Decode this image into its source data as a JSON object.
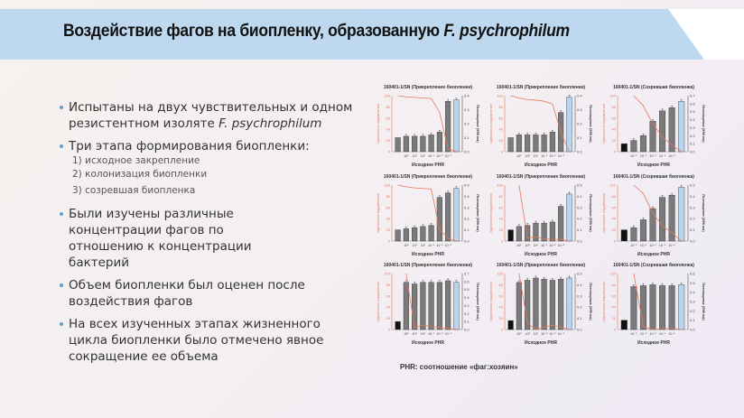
{
  "header": {
    "title_main": "Воздействие фагов на биопленку, образованную ",
    "title_italic": "F. psychrophilum"
  },
  "bullets": [
    {
      "text": "Испытаны на двух чувствительных и одном резистентном изоляте ",
      "italic": "F. psychrophilum"
    },
    {
      "text": "Три этапа формирования биопленки:",
      "sub": [
        "1) исходное закрепление",
        "2) колонизация биопленки",
        "3) созревшая биопленка"
      ]
    },
    {
      "text": "Были изучены различные концентрации фагов по отношению к концентрации бактерий"
    },
    {
      "text": "Объем биопленки был оценен после воздействия фагов"
    },
    {
      "text": "На всех изученных этапах жизненного цикла биопленки было отмечено явное сокращение ее объема"
    }
  ],
  "footnote": "PHR: соотношение «фаг:хозяин»",
  "colors": {
    "title_band": "#bed9ef",
    "bullet_dot": "#5aa0d8",
    "bar_gray": "#7a7a7a",
    "bar_black": "#111111",
    "bar_blue": "#b7d5ee",
    "line_orange": "#e8775a"
  },
  "chart_common": {
    "xlabel": "Исходное PHR",
    "ylabel_left": "Идеальное подавление",
    "ylabel_right": "Поглощение (595 нм)",
    "left_ticks": [
      0,
      20,
      40,
      60,
      80,
      100
    ]
  },
  "chart_data": [
    {
      "type": "bar",
      "title": "160401-1/SN (Прикрепление биопленки)",
      "categories": [
        "",
        "10²",
        "10¹",
        "10⁰",
        "10⁻¹",
        "10⁻²",
        "10⁻³",
        "ctrl"
      ],
      "has_black": false,
      "values": [
        0.1,
        0.11,
        0.11,
        0.11,
        0.12,
        0.14,
        0.36,
        0.37
      ],
      "ymax_right": 0.4,
      "right_ticks": [
        0.0,
        0.1,
        0.2,
        0.3,
        0.4
      ],
      "inhibition": [
        100,
        98,
        97,
        96,
        95,
        70,
        5,
        0
      ]
    },
    {
      "type": "bar",
      "title": "160401-1/SN (Прикрепление биопленки)",
      "categories": [
        "",
        "10²",
        "10¹",
        "10⁰",
        "10⁻¹",
        "10⁻²",
        "10⁻³",
        "ctrl"
      ],
      "has_black": false,
      "values": [
        0.1,
        0.12,
        0.12,
        0.12,
        0.12,
        0.14,
        0.28,
        0.39
      ],
      "ymax_right": 0.4,
      "right_ticks": [
        0.0,
        0.1,
        0.2,
        0.3,
        0.4
      ],
      "inhibition": [
        100,
        96,
        93,
        92,
        90,
        85,
        35,
        0
      ]
    },
    {
      "type": "bar",
      "title": "160401-1/SN (Созревшая биопленка)",
      "categories": [
        "",
        "10⁻¹",
        "10⁻²",
        "10⁻³",
        "10⁻⁴",
        "10⁻⁵",
        "ctrl"
      ],
      "has_black": true,
      "values": [
        0.1,
        0.14,
        0.2,
        0.38,
        0.51,
        0.55,
        0.63
      ],
      "ymax_right": 0.7,
      "right_ticks": [
        0.0,
        0.1,
        0.2,
        0.3,
        0.4,
        0.5,
        0.6,
        0.7
      ],
      "inhibition": [
        null,
        100,
        82,
        50,
        26,
        12,
        0
      ]
    },
    {
      "type": "bar",
      "title": "160401-1/SN (Прикрепление биопленки)",
      "categories": [
        "",
        "10²",
        "10¹",
        "10⁰",
        "10⁻¹",
        "10⁻²",
        "10⁻³",
        "ctrl"
      ],
      "has_black": false,
      "values": [
        0.1,
        0.11,
        0.12,
        0.13,
        0.14,
        0.39,
        0.43,
        0.47
      ],
      "ymax_right": 0.5,
      "right_ticks": [
        0.0,
        0.1,
        0.2,
        0.3,
        0.4,
        0.5
      ],
      "inhibition": [
        100,
        97,
        95,
        94,
        93,
        20,
        5,
        0
      ]
    },
    {
      "type": "bar",
      "title": "160401-1/SN (Прикрепление биопленки)",
      "categories": [
        "",
        "10²",
        "10¹",
        "10⁰",
        "10⁻¹",
        "10⁻²",
        "10⁻³",
        "ctrl"
      ],
      "has_black": true,
      "values": [
        0.1,
        0.13,
        0.14,
        0.16,
        0.16,
        0.17,
        0.31,
        0.42
      ],
      "ymax_right": 0.5,
      "right_ticks": [
        0.0,
        0.1,
        0.2,
        0.3,
        0.4,
        0.5
      ],
      "inhibition": [
        null,
        100,
        5,
        8,
        4,
        3,
        3,
        0
      ]
    },
    {
      "type": "bar",
      "title": "160401-1/SN (Созревшая биопленка)",
      "categories": [
        "",
        "10⁻¹",
        "10⁻²",
        "10⁻³",
        "10⁻⁴",
        "10⁻⁵",
        "ctrl"
      ],
      "has_black": true,
      "values": [
        0.1,
        0.12,
        0.19,
        0.29,
        0.39,
        0.41,
        0.48
      ],
      "ymax_right": 0.5,
      "right_ticks": [
        0.0,
        0.1,
        0.2,
        0.3,
        0.4,
        0.5
      ],
      "inhibition": [
        null,
        100,
        85,
        50,
        27,
        15,
        0
      ]
    },
    {
      "type": "bar",
      "title": "160401-1/SN (Прикрепление биопленки)",
      "categories": [
        "",
        "10²",
        "10¹",
        "10⁰",
        "10⁻¹",
        "10⁻²",
        "10⁻³",
        "ctrl"
      ],
      "has_black": true,
      "values": [
        0.1,
        0.59,
        0.57,
        0.59,
        0.59,
        0.59,
        0.61,
        0.59
      ],
      "ymax_right": 0.7,
      "right_ticks": [
        0.0,
        0.1,
        0.2,
        0.3,
        0.4,
        0.5,
        0.6,
        0.7
      ],
      "inhibition": [
        null,
        100,
        3,
        8,
        5,
        4,
        2,
        0
      ]
    },
    {
      "type": "bar",
      "title": "160401-1/SN (Прикрепление биопленки)",
      "categories": [
        "",
        "10²",
        "10¹",
        "10⁰",
        "10⁻¹",
        "10⁻²",
        "10⁻³",
        "ctrl"
      ],
      "has_black": true,
      "values": [
        0.08,
        0.42,
        0.44,
        0.46,
        0.45,
        0.44,
        0.45,
        0.46
      ],
      "ymax_right": 0.5,
      "right_ticks": [
        0.0,
        0.1,
        0.2,
        0.3,
        0.4,
        0.5
      ],
      "inhibition": [
        null,
        100,
        12,
        0,
        4,
        8,
        4,
        0
      ]
    },
    {
      "type": "bar",
      "title": "160401-1/SN (Созревшая биопленка)",
      "categories": [
        "",
        "10⁻¹",
        "10⁻²",
        "10⁻³",
        "10⁻⁴",
        "10⁻⁵",
        "ctrl"
      ],
      "has_black": true,
      "values": [
        0.1,
        0.46,
        0.47,
        0.48,
        0.47,
        0.47,
        0.48
      ],
      "ymax_right": 0.6,
      "right_ticks": [
        0.0,
        0.1,
        0.2,
        0.3,
        0.4,
        0.5,
        0.6
      ],
      "inhibition": [
        null,
        100,
        5,
        0,
        2,
        2,
        0
      ]
    }
  ]
}
